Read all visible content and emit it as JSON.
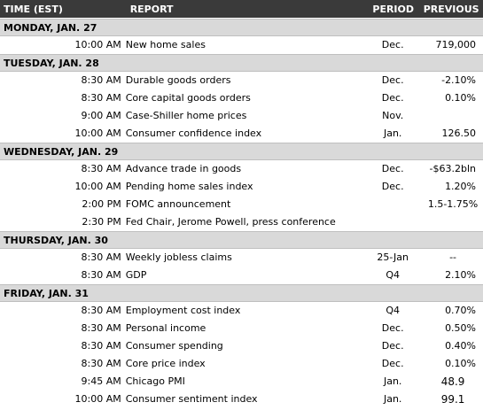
{
  "header": {
    "time": "TIME (EST)",
    "report": "REPORT",
    "period": "PERIOD",
    "previous": "PREVIOUS"
  },
  "days": [
    {
      "label": "MONDAY, JAN. 27",
      "rows": [
        {
          "time": "10:00 AM",
          "report": " New home sales",
          "period": "Dec.",
          "previous": "719,000"
        }
      ]
    },
    {
      "label": "TUESDAY, JAN. 28",
      "rows": [
        {
          "time": "8:30 AM",
          "report": "Durable goods orders",
          "period": "Dec.",
          "previous": "-2.10%"
        },
        {
          "time": "8:30 AM",
          "report": "Core capital goods orders",
          "period": "Dec.",
          "previous": "0.10%"
        },
        {
          "time": "9:00 AM",
          "report": "Case-Shiller home prices",
          "period": "Nov.",
          "previous": ""
        },
        {
          "time": "10:00 AM",
          "report": "Consumer confidence index",
          "period": "Jan.",
          "previous": "126.50"
        }
      ]
    },
    {
      "label": "WEDNESDAY, JAN. 29",
      "rows": [
        {
          "time": "8:30 AM",
          "report": "Advance trade in goods",
          "period": "Dec.",
          "previous": "-$63.2bln"
        },
        {
          "time": "10:00 AM",
          "report": "Pending home sales index",
          "period": "Dec.",
          "previous": "1.20%"
        },
        {
          "time": "2:00 PM",
          "report": "FOMC announcement",
          "period": "",
          "previous": "1.5-1.75%"
        },
        {
          "time": "2:30 PM",
          "report": "Fed Chair, Jerome Powell, press conference",
          "period": "",
          "previous": ""
        }
      ]
    },
    {
      "label": "THURSDAY, JAN. 30",
      "rows": [
        {
          "time": "8:30 AM",
          "report": "Weekly jobless claims",
          "period": "25-Jan",
          "previous": "--"
        },
        {
          "time": "8:30 AM",
          "report": "GDP",
          "period": "Q4",
          "previous": "2.10%"
        }
      ]
    },
    {
      "label": "FRIDAY, JAN. 31",
      "rows": [
        {
          "time": "8:30 AM",
          "report": "Employment cost index",
          "period": "Q4",
          "previous": "0.70%"
        },
        {
          "time": "8:30 AM",
          "report": "Personal income",
          "period": "Dec.",
          "previous": "0.50%"
        },
        {
          "time": "8:30 AM",
          "report": "Consumer spending",
          "period": "Dec.",
          "previous": "0.40%"
        },
        {
          "time": "8:30 AM",
          "report": "Core price index",
          "period": "Dec.",
          "previous": "0.10%"
        },
        {
          "time": "9:45 AM",
          "report": "Chicago PMI",
          "period": "Jan.",
          "previous": "48.9"
        },
        {
          "time": "10:00 AM",
          "report": "Consumer sentiment index",
          "period": "Jan.",
          "previous": "99.1"
        }
      ]
    }
  ],
  "colors": {
    "header_bg": "#3a3a3a",
    "day_bg": "#d9d9d9"
  }
}
